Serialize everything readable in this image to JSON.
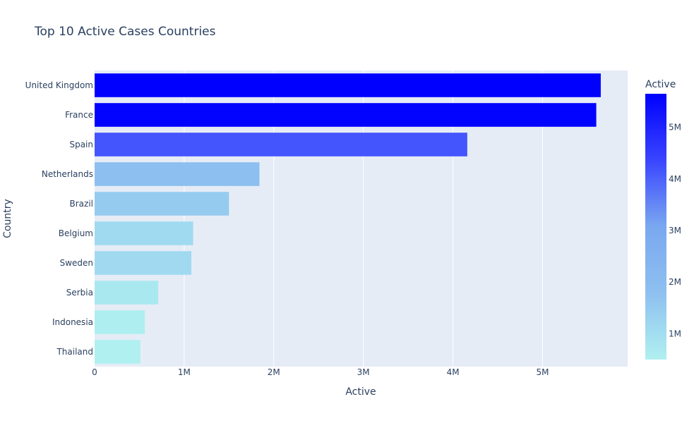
{
  "chart_data": {
    "type": "bar",
    "orientation": "horizontal",
    "title": "Top 10 Active Cases Countries",
    "xlabel": "Active",
    "ylabel": "Country",
    "xlim": [
      0,
      5950000
    ],
    "x_ticks": [
      {
        "value": 0,
        "label": "0"
      },
      {
        "value": 1000000,
        "label": "1M"
      },
      {
        "value": 2000000,
        "label": "2M"
      },
      {
        "value": 3000000,
        "label": "3M"
      },
      {
        "value": 4000000,
        "label": "4M"
      },
      {
        "value": 5000000,
        "label": "5M"
      }
    ],
    "grid": true,
    "categories": [
      "United Kingdom",
      "France",
      "Spain",
      "Netherlands",
      "Brazil",
      "Belgium",
      "Sweden",
      "Serbia",
      "Indonesia",
      "Thailand"
    ],
    "values": [
      5650000,
      5600000,
      4160000,
      1840000,
      1500000,
      1100000,
      1080000,
      710000,
      560000,
      510000
    ],
    "colorbar": {
      "title": "Active",
      "range": [
        500000,
        5650000
      ],
      "ticks": [
        {
          "value": 1000000,
          "label": "1M"
        },
        {
          "value": 2000000,
          "label": "2M"
        },
        {
          "value": 3000000,
          "label": "3M"
        },
        {
          "value": 4000000,
          "label": "4M"
        },
        {
          "value": 5000000,
          "label": "5M"
        }
      ],
      "colorscale": [
        "#b0f0f0",
        "#8ec0f0",
        "#7aa8f0",
        "#3a45ff",
        "#0000ff"
      ]
    }
  }
}
